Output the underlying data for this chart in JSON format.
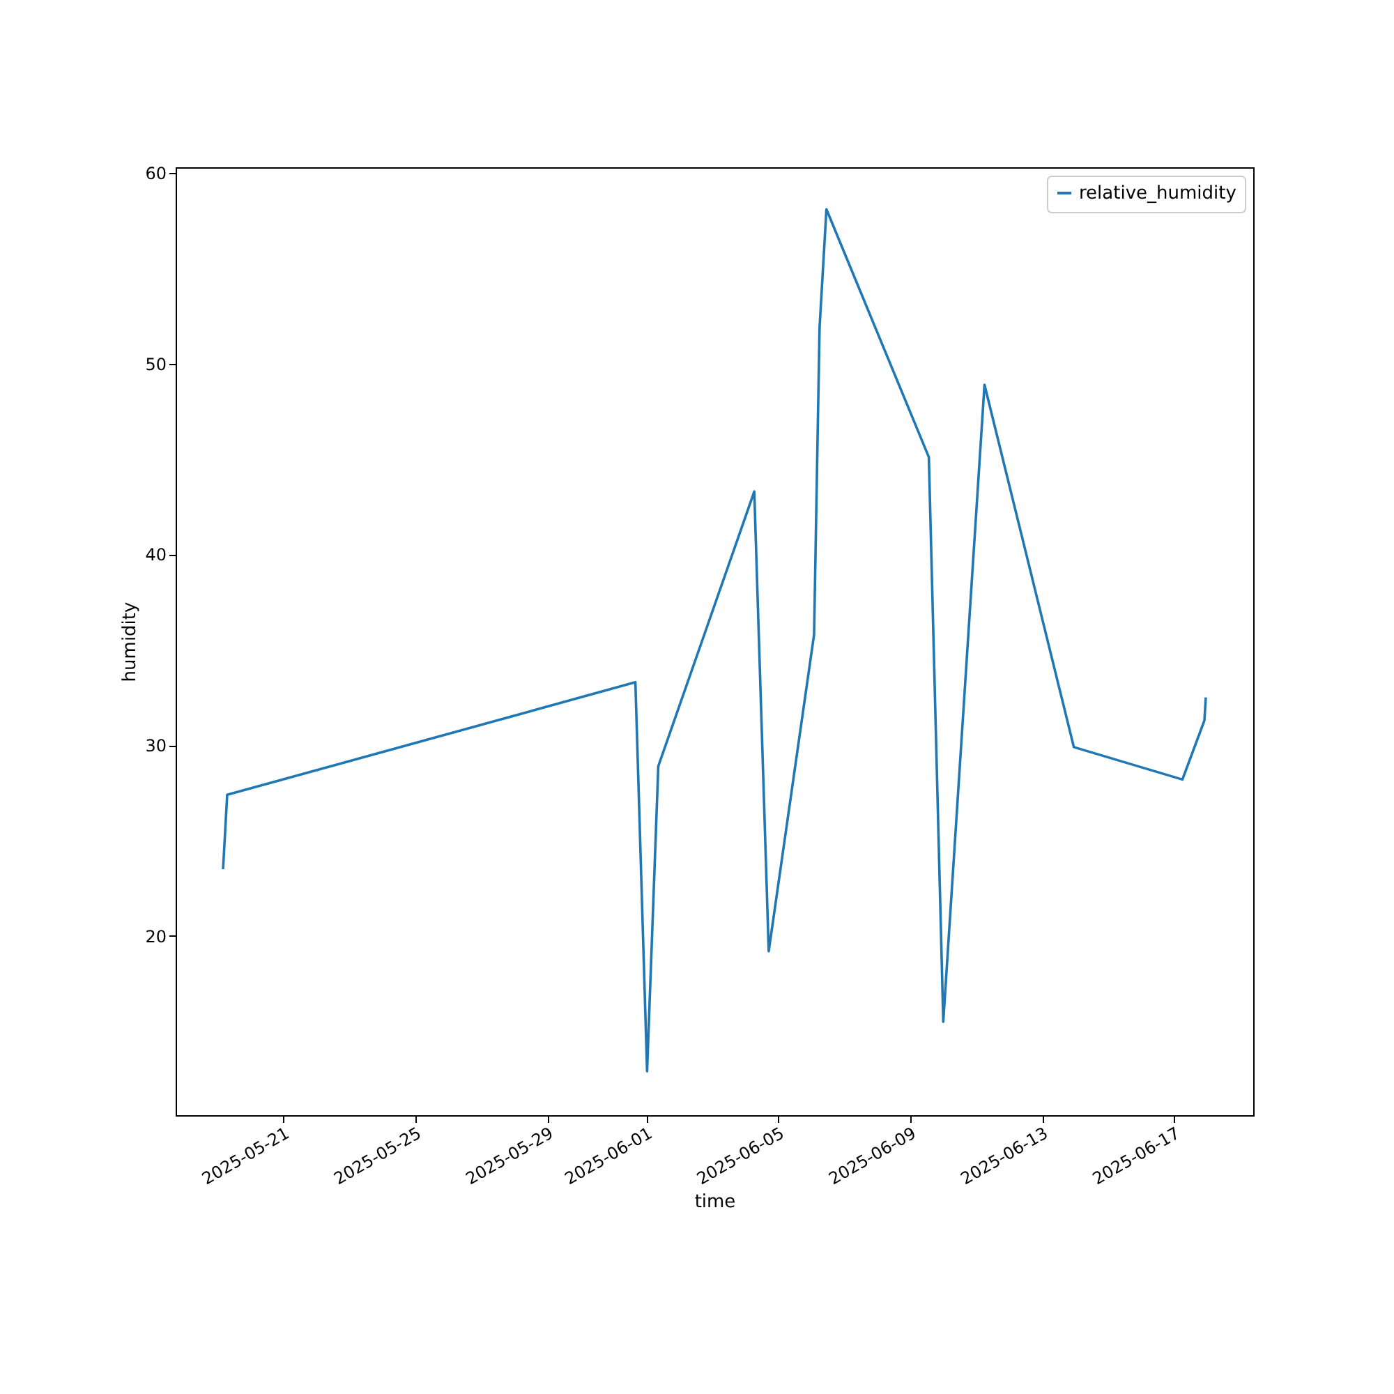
{
  "chart_data": {
    "type": "line",
    "xlabel": "time",
    "ylabel": "humidity",
    "x": [
      "2025-05-19T04:00",
      "2025-05-19T07:00",
      "2025-05-31T16:00",
      "2025-06-01T00:30",
      "2025-06-01T08:40",
      "2025-06-04T06:30",
      "2025-06-04T17:00",
      "2025-06-06T02:00",
      "2025-06-06T06:00",
      "2025-06-06T11:00",
      "2025-06-09T13:30",
      "2025-06-10T00:00",
      "2025-06-11T06:00",
      "2025-06-13T23:00",
      "2025-06-17T06:00",
      "2025-06-17T22:00",
      "2025-06-17T23:00"
    ],
    "series": [
      {
        "name": "relative_humidity",
        "color": "#1f77b4",
        "values": [
          23.5,
          27.4,
          33.3,
          12.9,
          28.9,
          43.3,
          19.2,
          35.8,
          51.9,
          58.1,
          45.1,
          15.5,
          48.9,
          29.9,
          28.2,
          31.3,
          32.5
        ]
      }
    ],
    "xlim": [
      "2025-05-17T17:30",
      "2025-06-19T09:30"
    ],
    "xticks": [
      "2025-05-21",
      "2025-05-25",
      "2025-05-29",
      "2025-06-01",
      "2025-06-05",
      "2025-06-09",
      "2025-06-13",
      "2025-06-17"
    ],
    "ylim": [
      10.6,
      60.3
    ],
    "yticks": [
      20,
      30,
      40,
      50,
      60
    ],
    "grid": false,
    "legend": "top right",
    "marker": "none",
    "line_style": "solid"
  }
}
